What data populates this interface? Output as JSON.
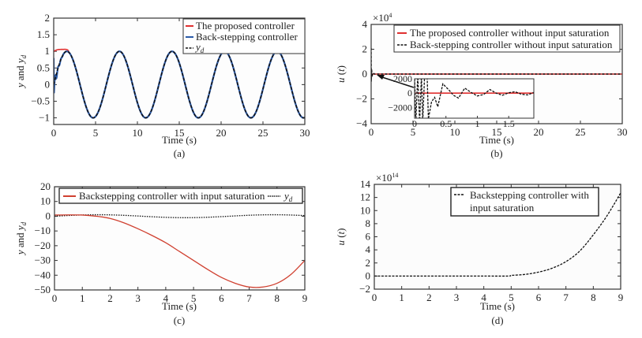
{
  "chart_data": [
    {
      "id": "a",
      "type": "line",
      "caption": "(a)",
      "xlabel": "Time (s)",
      "ylabel": "y and y_d",
      "xlim": [
        0,
        30
      ],
      "ylim": [
        -1.2,
        2
      ],
      "xticks": [
        0,
        5,
        10,
        15,
        20,
        25,
        30
      ],
      "yticks": [
        -1,
        -0.5,
        0,
        0.5,
        1,
        1.5,
        2
      ],
      "ytick_labels": [
        "−1",
        "−0.5",
        "0",
        "0.5",
        "1",
        "1.5",
        "2"
      ],
      "legend_position": "top-right",
      "series": [
        {
          "name": "The proposed controller",
          "color": "#e03030",
          "style": "solid",
          "description": "starts at 1.0, rises to ~1.1 near t=1.2, then tracks sin(t) with period ~6.28"
        },
        {
          "name": "Back-stepping controller",
          "color": "#2a5aa8",
          "style": "solid",
          "description": "starts near 0.8, drops to ~-0.1 at t~0.2, oscillates then tracks sin(t)"
        },
        {
          "name": "y_d",
          "color": "#111111",
          "style": "dashed",
          "description": "y_d = sin(t)"
        }
      ]
    },
    {
      "id": "b",
      "type": "line",
      "caption": "(b)",
      "xlabel": "Time (s)",
      "ylabel": "u (t)",
      "y_multiplier": "×10",
      "y_multiplier_exp": "4",
      "xlim": [
        0,
        30
      ],
      "ylim": [
        -4,
        4
      ],
      "xticks": [
        0,
        5,
        10,
        15,
        20,
        25,
        30
      ],
      "yticks": [
        -4,
        -2,
        0,
        2,
        4
      ],
      "ytick_labels": [
        "−4",
        "−2",
        "0",
        "2",
        "4"
      ],
      "legend_position": "top-right",
      "series": [
        {
          "name": "The proposed controller without input saturation",
          "color": "#e03030",
          "style": "solid",
          "description": "approximately 0 throughout"
        },
        {
          "name": "Back-stepping controller without input saturation",
          "color": "#111111",
          "style": "dashed",
          "description": "spike to ~2.1e4 near t=0, then ~0"
        }
      ],
      "inset": {
        "xlim": [
          0,
          1.9
        ],
        "ylim": [
          -3500,
          2000
        ],
        "xticks": [
          0,
          0.5,
          1,
          1.5
        ],
        "yticks": [
          -2000,
          0,
          2000
        ],
        "ytick_labels": [
          "−2000",
          "0",
          "2000"
        ],
        "description": "zoom of initial transient: dashed damped oscillation around 0, red at 0"
      }
    },
    {
      "id": "c",
      "type": "line",
      "caption": "(c)",
      "xlabel": "Time (s)",
      "ylabel": "y and y_d",
      "xlim": [
        0,
        9
      ],
      "ylim": [
        -50,
        20
      ],
      "xticks": [
        0,
        1,
        2,
        3,
        4,
        5,
        6,
        7,
        8,
        9
      ],
      "yticks": [
        -50,
        -40,
        -30,
        -20,
        -10,
        0,
        10,
        20
      ],
      "ytick_labels": [
        "−50",
        "−40",
        "−30",
        "−20",
        "−10",
        "0",
        "10",
        "20"
      ],
      "legend_position": "top",
      "series": [
        {
          "name": "Backstepping controller with input saturation",
          "color": "#d04030",
          "style": "solid",
          "x": [
            0,
            0.5,
            1,
            1.5,
            2,
            2.5,
            3,
            3.5,
            4,
            4.5,
            5,
            5.5,
            6,
            6.5,
            7,
            7.5,
            8,
            8.5,
            9
          ],
          "y": [
            0.8,
            0.9,
            0.8,
            0,
            -1.5,
            -4.5,
            -8.5,
            -13,
            -18,
            -24,
            -30,
            -36,
            -41.5,
            -45.5,
            -48,
            -48,
            -45.5,
            -39.5,
            -30
          ]
        },
        {
          "name": "y_d",
          "color": "#111111",
          "style": "dotted",
          "description": "y_d = sin(t)"
        }
      ]
    },
    {
      "id": "d",
      "type": "line",
      "caption": "(d)",
      "xlabel": "Time (s)",
      "ylabel": "u (t)",
      "y_multiplier": "×10",
      "y_multiplier_exp": "14",
      "xlim": [
        0,
        9
      ],
      "ylim": [
        -2,
        14
      ],
      "xticks": [
        0,
        1,
        2,
        3,
        4,
        5,
        6,
        7,
        8,
        9
      ],
      "yticks": [
        -2,
        0,
        2,
        4,
        6,
        8,
        10,
        12,
        14
      ],
      "ytick_labels": [
        "−2",
        "0",
        "2",
        "4",
        "6",
        "8",
        "10",
        "12",
        "14"
      ],
      "legend_position": "top-right",
      "legend_lines": [
        "Backstepping controller with",
        "input saturation"
      ],
      "series": [
        {
          "name": "Backstepping controller with input saturation",
          "color": "#111111",
          "style": "dashed",
          "x": [
            0,
            1,
            2,
            3,
            4,
            4.9,
            5,
            5.5,
            6,
            6.5,
            7,
            7.5,
            8,
            8.5,
            9
          ],
          "y": [
            0,
            0,
            0,
            0,
            0,
            0,
            0.1,
            0.25,
            0.6,
            1.2,
            2.2,
            3.8,
            6.3,
            9.2,
            12.7
          ]
        }
      ]
    }
  ]
}
